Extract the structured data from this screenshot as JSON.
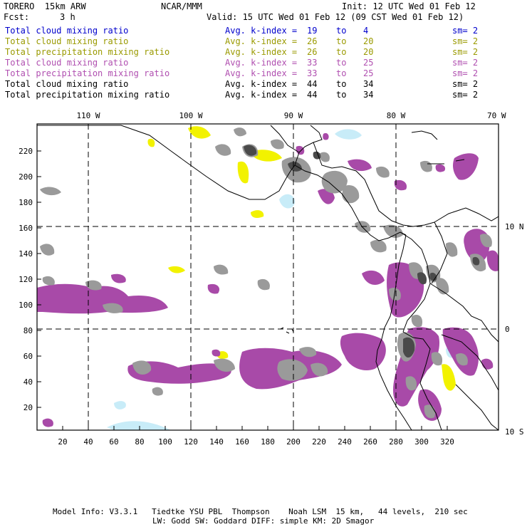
{
  "header": {
    "model": "TORERO  15km ARW",
    "org": "NCAR/MMM",
    "init": "Init: 12 UTC Wed 01 Feb 12",
    "fcst_label": "Fcst:",
    "fcst_value": "3 h",
    "valid": "Valid: 15 UTC Wed 01 Feb 12 (09 CST Wed 01 Feb 12)"
  },
  "legend": [
    {
      "field": "Total cloud mixing ratio",
      "stat": "Avg. k-index =",
      "from": "19",
      "to_word": "to",
      "to": "4",
      "sm": "sm= 2",
      "color": "#0000cc"
    },
    {
      "field": "Total cloud mixing ratio",
      "stat": "Avg. k-index =",
      "from": "26",
      "to_word": "to",
      "to": "20",
      "sm": "sm= 2",
      "color": "#9a9a00"
    },
    {
      "field": "Total precipitation mixing ratio",
      "stat": "Avg. k-index =",
      "from": "26",
      "to_word": "to",
      "to": "20",
      "sm": "sm= 2",
      "color": "#9a9a00"
    },
    {
      "field": "Total cloud mixing ratio",
      "stat": "Avg. k-index =",
      "from": "33",
      "to_word": "to",
      "to": "25",
      "sm": "sm= 2",
      "color": "#b04fb0"
    },
    {
      "field": "Total precipitation mixing ratio",
      "stat": "Avg. k-index =",
      "from": "33",
      "to_word": "to",
      "to": "25",
      "sm": "sm= 2",
      "color": "#b04fb0"
    },
    {
      "field": "Total cloud mixing ratio",
      "stat": "Avg. k-index =",
      "from": "44",
      "to_word": "to",
      "to": "34",
      "sm": "sm= 2",
      "color": "#000000"
    },
    {
      "field": "Total precipitation mixing ratio",
      "stat": "Avg. k-index =",
      "from": "44",
      "to_word": "to",
      "to": "34",
      "sm": "sm= 2",
      "color": "#000000"
    }
  ],
  "map": {
    "lon_labels": [
      "110 W",
      "100 W",
      "90 W",
      "80 W",
      "70 W"
    ],
    "lat_labels": [
      "10 N",
      "0",
      "10 S"
    ],
    "x_ticks": [
      "20",
      "40",
      "60",
      "80",
      "100",
      "120",
      "140",
      "160",
      "180",
      "200",
      "220",
      "240",
      "260",
      "280",
      "300",
      "320"
    ],
    "y_ticks": [
      "20",
      "40",
      "60",
      "80",
      "100",
      "120",
      "140",
      "160",
      "180",
      "200",
      "220"
    ],
    "colors": {
      "cloud_light": "#c8ecf8",
      "cloud_yellow": "#f2f200",
      "cloud_purple": "#a84aa8",
      "cloud_gray": "#9a9a9a",
      "cloud_dark": "#4a4a4a",
      "frame": "#000000"
    }
  },
  "footer": {
    "line1": "Model Info: V3.3.1   Tiedtke YSU PBL  Thompson    Noah LSM  15 km,   44 levels,  210 sec",
    "line2": "LW: Godd SW: Goddard DIFF: simple KM: 2D Smagor"
  }
}
